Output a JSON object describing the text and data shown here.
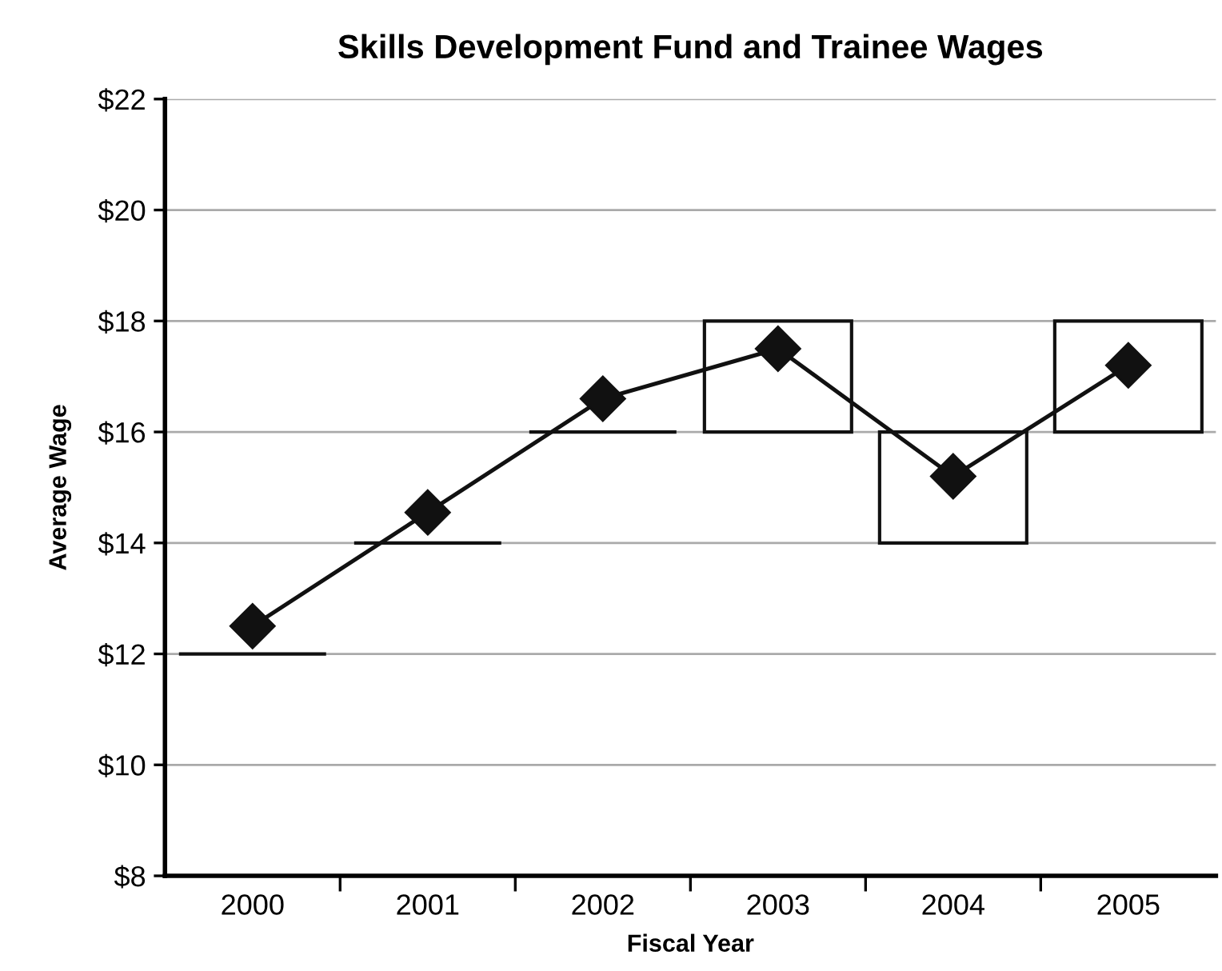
{
  "chart_data": {
    "type": "line",
    "title": "Skills Development Fund and Trainee Wages",
    "xlabel": "Fiscal Year",
    "ylabel": "Average Wage",
    "categories": [
      "2000",
      "2001",
      "2002",
      "2003",
      "2004",
      "2005"
    ],
    "series": [
      {
        "type": "bar",
        "color": "#111111",
        "base": [
          12,
          14,
          16,
          16,
          14,
          16
        ],
        "values": [
          0,
          0,
          0,
          2,
          2,
          2
        ]
      },
      {
        "color": "#111111",
        "marker": "diamond",
        "values": [
          12.5,
          14.55,
          16.6,
          17.5,
          15.2,
          17.2
        ]
      }
    ],
    "ylim": [
      8,
      22
    ],
    "yticks": [
      {
        "value": 8,
        "label": "$8"
      },
      {
        "value": 10,
        "label": "$10"
      },
      {
        "value": 12,
        "label": "$12"
      },
      {
        "value": 14,
        "label": "$14"
      },
      {
        "value": 16,
        "label": "$16"
      },
      {
        "value": 18,
        "label": "$18"
      },
      {
        "value": 20,
        "label": "$20"
      },
      {
        "value": 22,
        "label": "$22"
      }
    ],
    "grid": "y",
    "legend": false
  }
}
